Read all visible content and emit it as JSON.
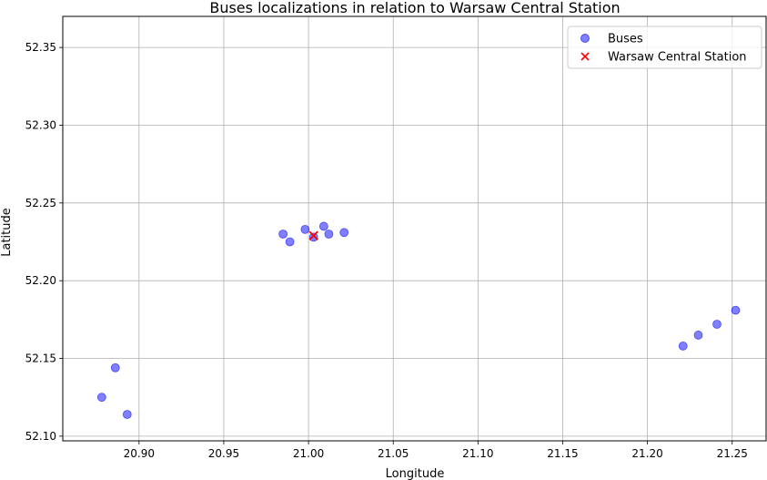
{
  "chart_data": {
    "type": "scatter",
    "title": "Buses localizations in relation to Warsaw Central Station",
    "xlabel": "Longitude",
    "ylabel": "Latitude",
    "xlim": [
      20.855,
      21.27
    ],
    "ylim": [
      52.097,
      52.37
    ],
    "xticks": [
      20.9,
      20.95,
      21.0,
      21.05,
      21.1,
      21.15,
      21.2,
      21.25
    ],
    "xtick_labels": [
      "20.90",
      "20.95",
      "21.00",
      "21.05",
      "21.10",
      "21.15",
      "21.20",
      "21.25"
    ],
    "yticks": [
      52.1,
      52.15,
      52.2,
      52.25,
      52.3,
      52.35
    ],
    "ytick_labels": [
      "52.10",
      "52.15",
      "52.20",
      "52.25",
      "52.30",
      "52.35"
    ],
    "grid": true,
    "legend_position": "top-right",
    "series": [
      {
        "name": "Buses",
        "marker": "circle",
        "color": "#0000ff",
        "x": [
          20.878,
          20.886,
          20.893,
          20.985,
          20.989,
          20.998,
          21.003,
          21.009,
          21.012,
          21.021,
          21.221,
          21.23,
          21.241,
          21.252
        ],
        "y": [
          52.125,
          52.144,
          52.114,
          52.23,
          52.225,
          52.233,
          52.228,
          52.235,
          52.23,
          52.231,
          52.158,
          52.165,
          52.172,
          52.181
        ]
      },
      {
        "name": "Warsaw Central Station",
        "marker": "x",
        "color": "#ff0000",
        "x": [
          21.003
        ],
        "y": [
          52.229
        ]
      }
    ]
  }
}
